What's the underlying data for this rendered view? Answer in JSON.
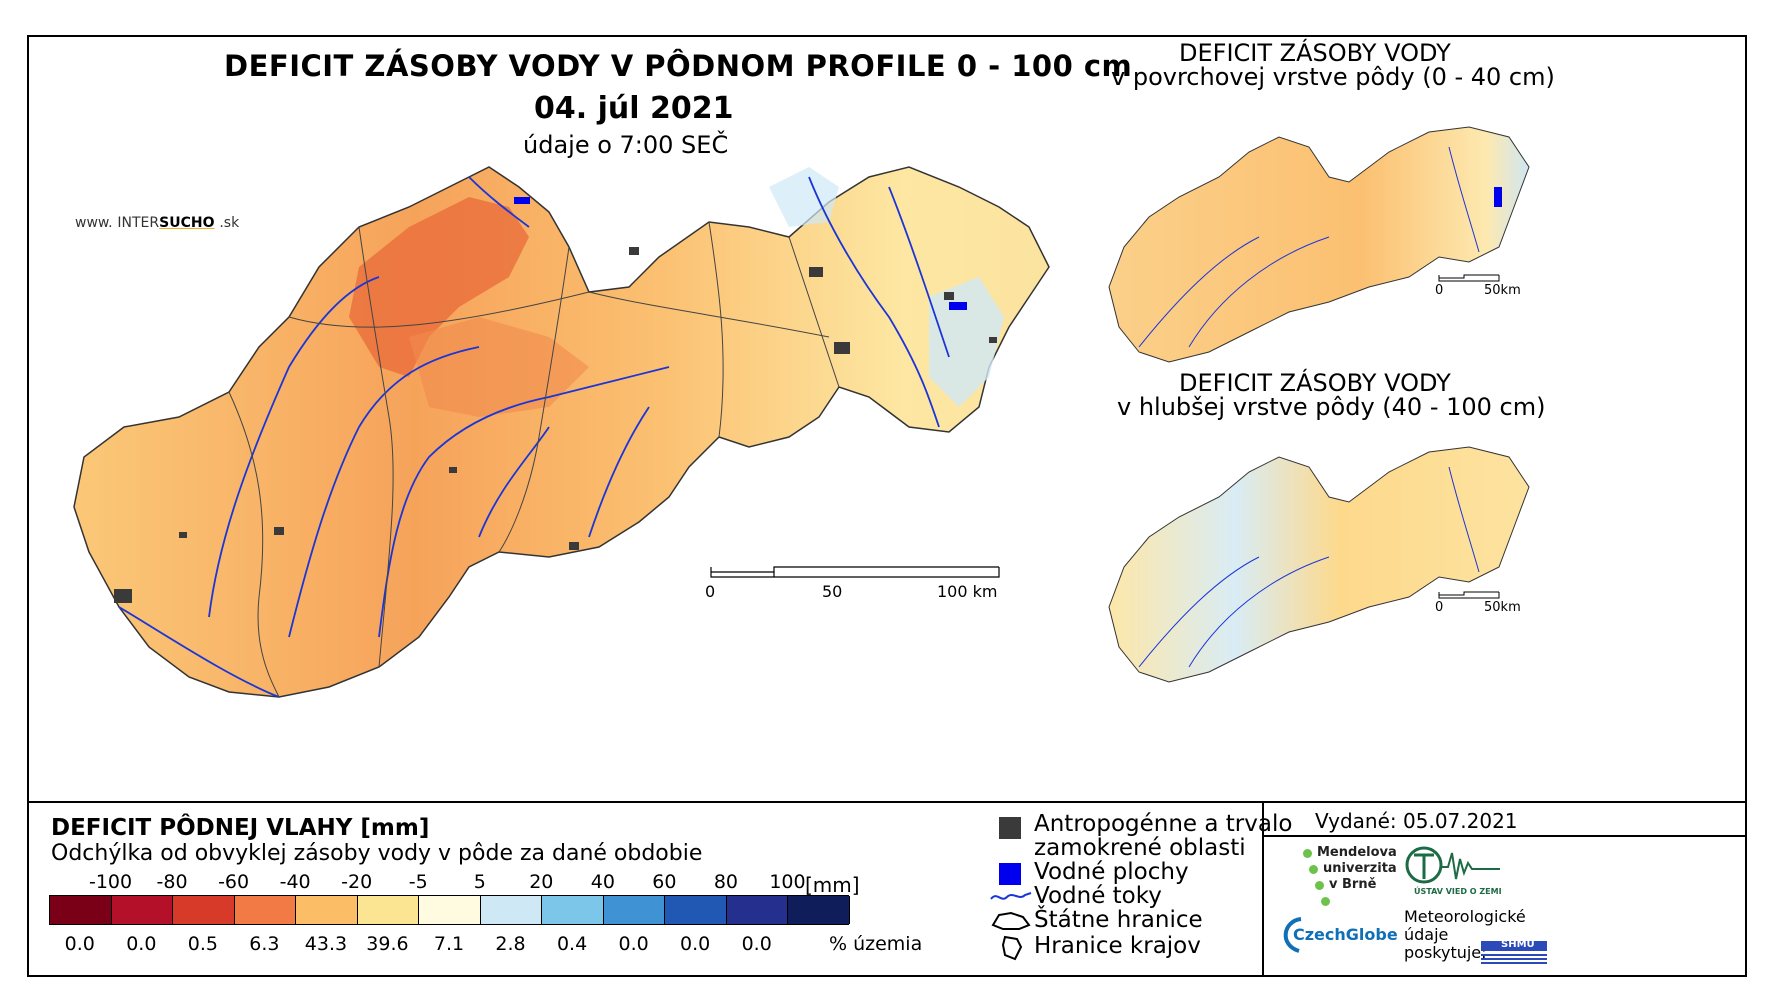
{
  "main_map": {
    "title": "DEFICIT ZÁSOBY VODY V PÔDNOM PROFILE 0 - 100 cm",
    "date": "04. júl 2021",
    "time_note": "údaje o 7:00 SEČ",
    "brand": {
      "prefix": "www.",
      "name_a": "INTER",
      "name_b": "SUCHO",
      "suffix": ".sk"
    },
    "scale": {
      "labels": [
        "0",
        "50",
        "100 km"
      ]
    }
  },
  "inset_top": {
    "title_line1": "DEFICIT ZÁSOBY VODY",
    "title_line2": "v povrchovej vrstve pôdy (0 - 40 cm)",
    "scale": {
      "labels": [
        "0",
        "50km"
      ]
    }
  },
  "inset_bottom": {
    "title_line1": "DEFICIT ZÁSOBY VODY",
    "title_line2": "v hlubšej vrstve pôdy (40 - 100 cm)",
    "scale": {
      "labels": [
        "0",
        "50km"
      ]
    }
  },
  "legend": {
    "title": "DEFICIT PÔDNEJ VLAHY [mm]",
    "subtitle": "Odchýlka od obvyklej zásoby vody v pôde za dané obdobie",
    "breaks": [
      "-100",
      "-80",
      "-60",
      "-40",
      "-20",
      "-5",
      "5",
      "20",
      "40",
      "60",
      "80",
      "100"
    ],
    "unit": "[mm]",
    "colors": [
      "#7a0018",
      "#b5102a",
      "#d83a2a",
      "#f27a45",
      "#fbbd66",
      "#fbe592",
      "#fffbe0",
      "#cfe8f6",
      "#7cc6ea",
      "#3f93d4",
      "#2158b4",
      "#25308e",
      "#0f1d5a"
    ],
    "percentages": [
      "0.0",
      "0.0",
      "0.5",
      "6.3",
      "43.3",
      "39.6",
      "7.1",
      "2.8",
      "0.4",
      "0.0",
      "0.0",
      "0.0"
    ],
    "pct_unit": "% územia"
  },
  "key": {
    "items": [
      {
        "icon": "dark-square-icon",
        "label_line1": "Antropogénne a trvalo",
        "label_line2": "zamokrené oblasti"
      },
      {
        "icon": "blue-square-icon",
        "label_line1": "Vodné plochy"
      },
      {
        "icon": "river-line-icon",
        "label_line1": "Vodné toky"
      },
      {
        "icon": "state-border-icon",
        "label_line1": "Štátne hranice"
      },
      {
        "icon": "region-border-icon",
        "label_line1": "Hranice krajov"
      }
    ]
  },
  "credits": {
    "issued": "Vydané: 05.07.2021",
    "mendel_1": "Mendelova",
    "mendel_2": "univerzita",
    "mendel_3": "v Brně",
    "czechglobe": "CzechGlobe",
    "uvz": "ÚSTAV VIED O ZEMI",
    "meteo_1": "Meteorologické",
    "meteo_2": "údaje",
    "meteo_3": "poskytuje:",
    "shmu": "SHMÚ"
  }
}
